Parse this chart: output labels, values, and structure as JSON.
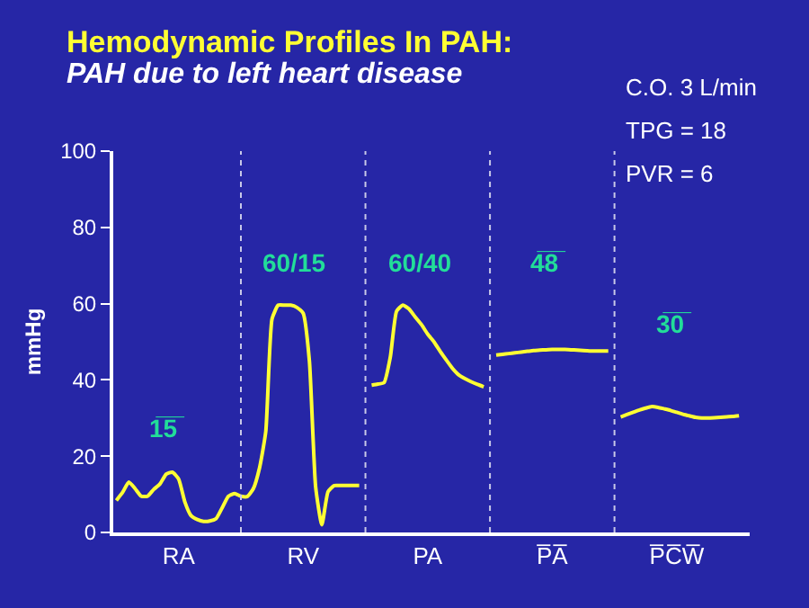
{
  "chart_data": {
    "type": "line",
    "title": "Hemodynamic Profiles In PAH:",
    "subtitle": "PAH due to left heart disease",
    "ylabel": "mmHg",
    "categories": [
      null,
      null,
      null,
      null,
      null,
      null,
      null,
      null,
      null,
      null,
      "RA",
      null,
      null,
      null,
      null,
      null,
      null,
      null,
      null,
      null,
      null,
      null,
      null,
      null,
      null,
      null,
      null,
      null,
      null,
      null,
      "RV",
      null,
      null,
      null,
      null,
      null,
      null,
      null,
      null,
      null,
      null,
      null,
      null,
      null,
      null,
      null,
      null,
      null,
      null,
      null,
      "PA",
      null,
      null,
      null,
      null,
      null,
      null,
      null,
      null,
      null,
      null,
      null,
      null,
      null,
      null,
      null,
      null,
      null,
      null,
      null,
      "P̅A̅",
      null,
      null,
      null,
      null,
      null,
      null,
      null,
      null,
      null,
      null,
      null,
      null,
      null,
      null,
      null,
      null,
      null,
      null,
      null,
      "P̅C̅W̅",
      null,
      null,
      null,
      null,
      null,
      null,
      null,
      null,
      null,
      null
    ],
    "ylim": [
      0,
      100
    ],
    "yticks": [
      0,
      20,
      40,
      60,
      80,
      100
    ],
    "grid": false,
    "marker": "none",
    "line_style": "solid",
    "series": [
      {
        "color": "#ffff33",
        "values": [
          8.4,
          10.5,
          13.2,
          11.5,
          9.5,
          9.5,
          11.3,
          12.7,
          15.3,
          15.8,
          14,
          8,
          4.4,
          3.4,
          2.9,
          3.0,
          3.6,
          6.5,
          9.5,
          10.2,
          9.5,
          9.4,
          11.5,
          17,
          26.5,
          56,
          59.6,
          59.6,
          59.6,
          59.0,
          57.5,
          45,
          12,
          2,
          10.7,
          12.3,
          12.3,
          12.3,
          12.3,
          12.3,
          null,
          38.6,
          38.9,
          39.3,
          46,
          58,
          59.6,
          58.6,
          56.5,
          54.5,
          52,
          50,
          47.5,
          45.2,
          43,
          41.3,
          40.3,
          39.5,
          38.8,
          38.2,
          null,
          46.5,
          46.7,
          46.9,
          47.1,
          47.3,
          47.5,
          47.7,
          47.8,
          47.9,
          48.0,
          48.0,
          48.0,
          47.9,
          47.8,
          47.7,
          47.6,
          47.6,
          47.6,
          47.6,
          null,
          30.3,
          30.9,
          31.5,
          32.1,
          32.6,
          33.0,
          32.8,
          32.4,
          32.0,
          31.5,
          31.0,
          30.6,
          30.2,
          30.0,
          30.0,
          30.1,
          30.2,
          30.3,
          30.4,
          30.6
        ]
      }
    ],
    "annotations": [
      "1̅5̅",
      "60/15",
      "60/40",
      "4̅8̅",
      "3̅0̅",
      "C.O. 3 L/min",
      "TPG = 18",
      "PVR = 6"
    ]
  }
}
